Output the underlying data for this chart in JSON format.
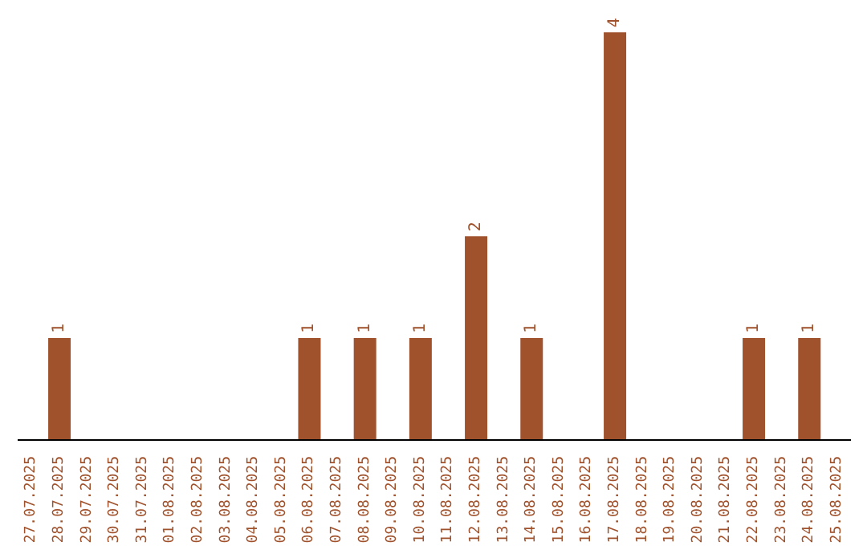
{
  "chart_data": {
    "type": "bar",
    "categories": [
      "27.07.2025",
      "28.07.2025",
      "29.07.2025",
      "30.07.2025",
      "31.07.2025",
      "01.08.2025",
      "02.08.2025",
      "03.08.2025",
      "04.08.2025",
      "05.08.2025",
      "06.08.2025",
      "07.08.2025",
      "08.08.2025",
      "09.08.2025",
      "10.08.2025",
      "11.08.2025",
      "12.08.2025",
      "13.08.2025",
      "14.08.2025",
      "15.08.2025",
      "16.08.2025",
      "17.08.2025",
      "18.08.2025",
      "19.08.2025",
      "20.08.2025",
      "21.08.2025",
      "22.08.2025",
      "23.08.2025",
      "24.08.2025",
      "25.08.2025"
    ],
    "values": [
      0,
      1,
      0,
      0,
      0,
      0,
      0,
      0,
      0,
      0,
      1,
      0,
      1,
      0,
      1,
      0,
      2,
      0,
      1,
      0,
      0,
      4,
      0,
      0,
      0,
      0,
      1,
      0,
      1,
      0
    ],
    "value_labels": [
      null,
      "1",
      null,
      null,
      null,
      null,
      null,
      null,
      null,
      null,
      "1",
      null,
      "1",
      null,
      "1",
      null,
      "2",
      null,
      "1",
      null,
      null,
      "4",
      null,
      null,
      null,
      null,
      "1",
      null,
      "1",
      null
    ],
    "color": "#a0522d",
    "tick_labels": "x",
    "grid": false
  }
}
